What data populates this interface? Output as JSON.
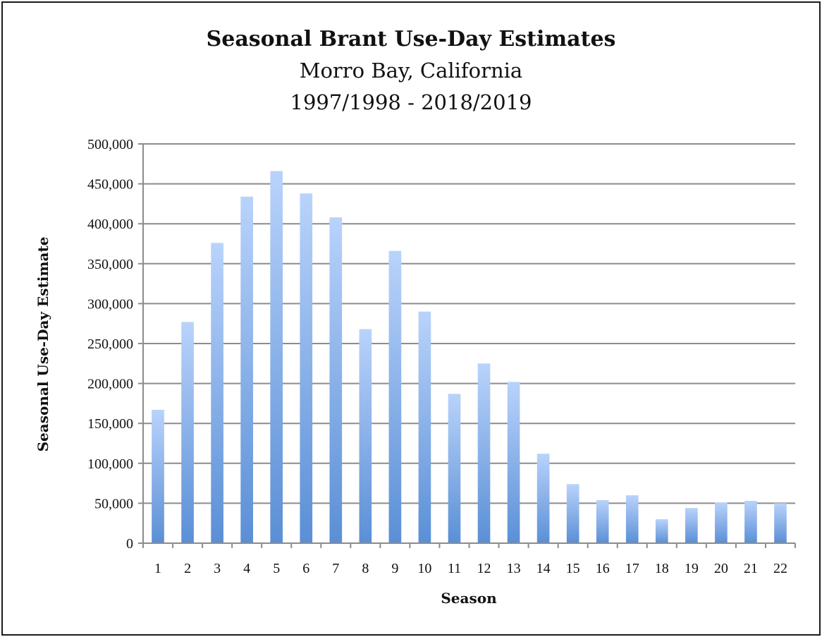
{
  "chart_data": {
    "type": "bar",
    "title": "Seasonal Brant Use-Day Estimates",
    "subtitle_lines": [
      "Morro Bay, California",
      "1997/1998 - 2018/2019"
    ],
    "xlabel": "Season",
    "ylabel": "Seasonal Use-Day Estimate",
    "categories": [
      "1",
      "2",
      "3",
      "4",
      "5",
      "6",
      "7",
      "8",
      "9",
      "10",
      "11",
      "12",
      "13",
      "14",
      "15",
      "16",
      "17",
      "18",
      "19",
      "20",
      "21",
      "22"
    ],
    "values": [
      167000,
      277000,
      376000,
      434000,
      466000,
      438000,
      408000,
      268000,
      366000,
      290000,
      187000,
      225000,
      202000,
      112000,
      74000,
      54000,
      60000,
      30000,
      44000,
      51000,
      53000,
      50000
    ],
    "ylim": [
      0,
      500000
    ],
    "yticks": [
      "0",
      "50,000",
      "100,000",
      "150,000",
      "200,000",
      "250,000",
      "300,000",
      "350,000",
      "400,000",
      "450,000",
      "500,000"
    ],
    "grid": true,
    "legend": "none",
    "colors": {
      "bar_top": "#b9d3fb",
      "bar_bottom": "#5a8fd6",
      "grid": "#8c8c8c"
    }
  }
}
